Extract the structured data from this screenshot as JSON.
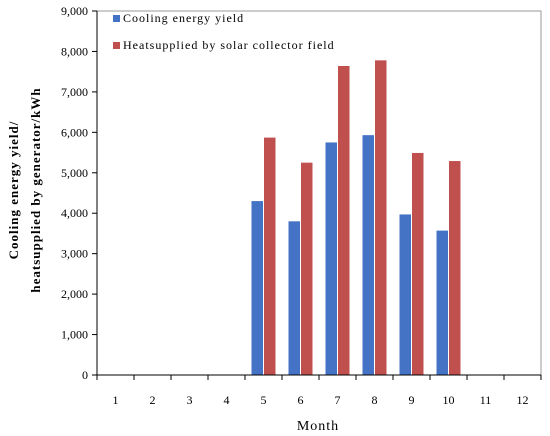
{
  "chart_data": {
    "type": "bar",
    "categories": [
      "1",
      "2",
      "3",
      "4",
      "5",
      "6",
      "7",
      "8",
      "9",
      "10",
      "11",
      "12"
    ],
    "xlabel": "Month",
    "ylabel_lines": [
      "Cooling energy yield/",
      "heatsupplied by generator/kWh"
    ],
    "ylim": [
      0,
      9000
    ],
    "yticks": [
      0,
      1000,
      2000,
      3000,
      4000,
      5000,
      6000,
      7000,
      8000,
      9000
    ],
    "ytick_labels": [
      "0",
      "1,000",
      "2,000",
      "3,000",
      "4,000",
      "5,000",
      "6,000",
      "7,000",
      "8,000",
      "9,000"
    ],
    "grid": false,
    "legend_placement": "top-left",
    "series": [
      {
        "name": "Cooling energy yield",
        "color": "#4472C4",
        "values": [
          0,
          0,
          0,
          0,
          4300,
          3800,
          5750,
          5930,
          3970,
          3570,
          0,
          0
        ]
      },
      {
        "name": "Heatsupplied by solar collector field",
        "color": "#C0504D",
        "values": [
          0,
          0,
          0,
          0,
          5870,
          5250,
          7640,
          7780,
          5490,
          5290,
          0,
          0
        ]
      }
    ]
  }
}
